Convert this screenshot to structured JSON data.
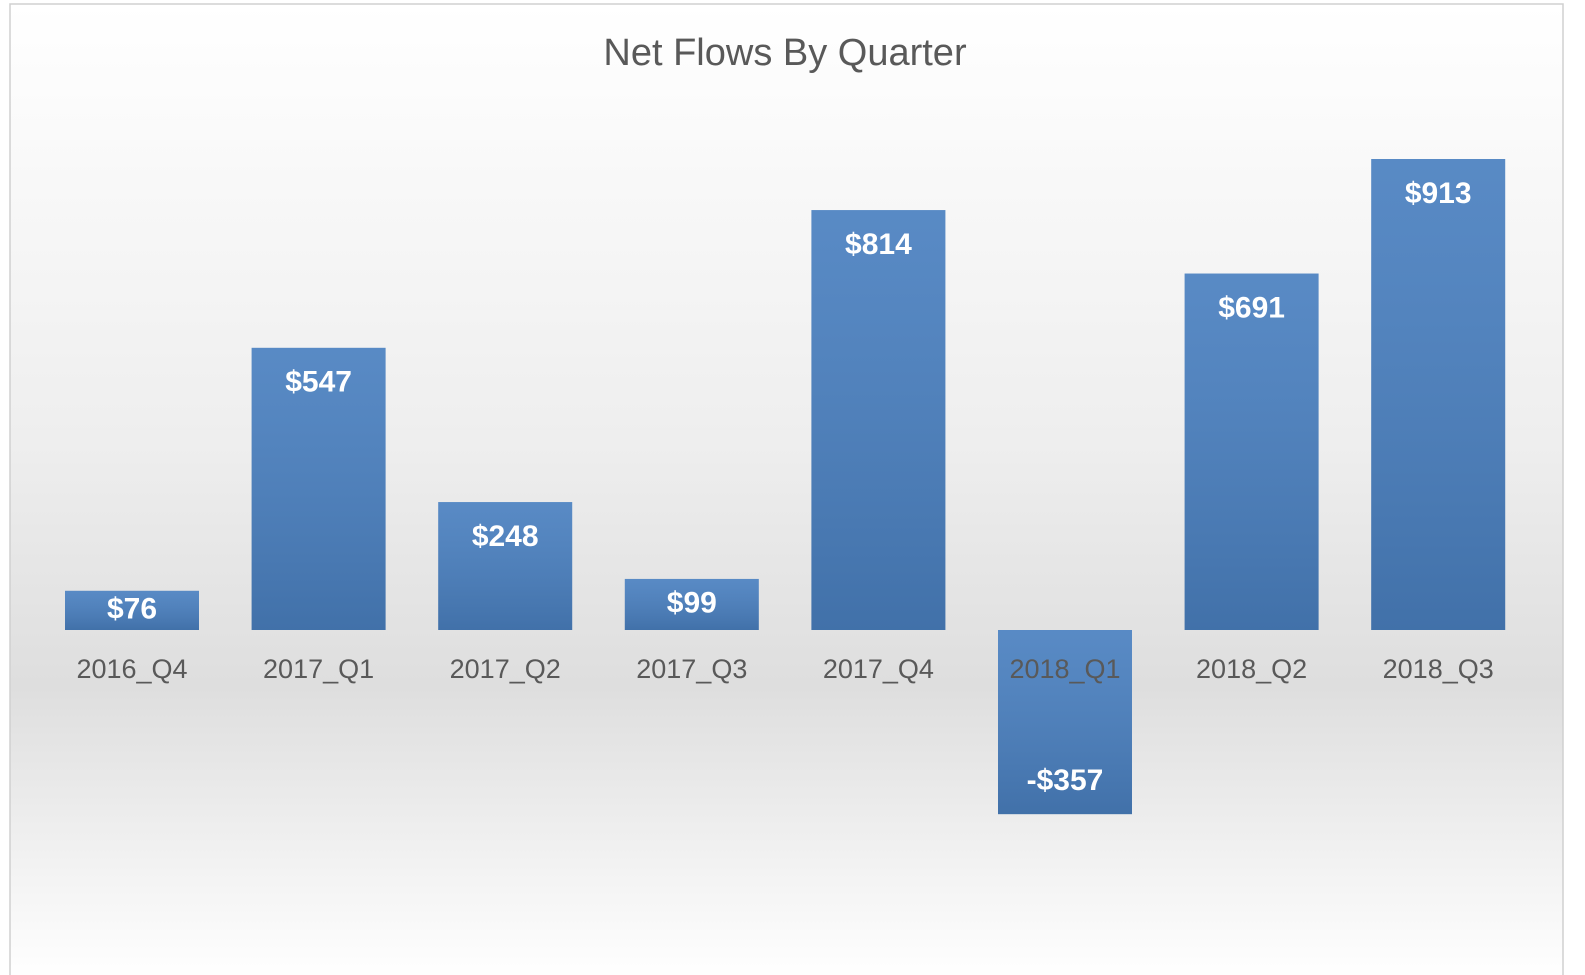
{
  "chart_data": {
    "type": "bar",
    "title": "Net Flows By Quarter",
    "categories": [
      "2016_Q4",
      "2017_Q1",
      "2017_Q2",
      "2017_Q3",
      "2017_Q4",
      "2018_Q1",
      "2018_Q2",
      "2018_Q3"
    ],
    "values": [
      76,
      547,
      248,
      99,
      814,
      -357,
      691,
      913
    ],
    "value_labels": [
      "$76",
      "$547",
      "$248",
      "$99",
      "$814",
      "-$357",
      "$691",
      "$913"
    ],
    "color": "#4a80c0"
  }
}
